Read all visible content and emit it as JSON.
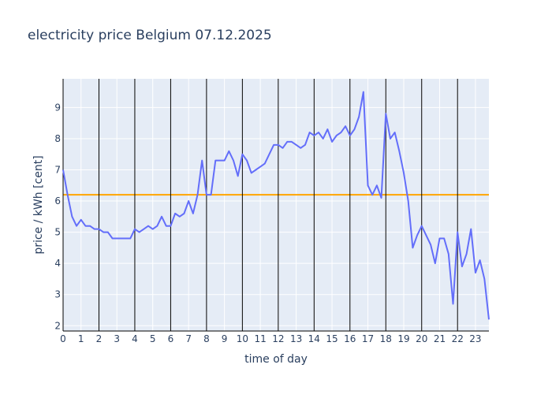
{
  "chart_data": {
    "type": "line",
    "title": "electricity price Belgium 07.12.2025",
    "xlabel": "time of day",
    "ylabel": "price / kWh [cent]",
    "xlim": [
      0,
      23.75
    ],
    "ylim": [
      1.83,
      9.92
    ],
    "x_ticks": [
      0,
      1,
      2,
      3,
      4,
      5,
      6,
      7,
      8,
      9,
      10,
      11,
      12,
      13,
      14,
      15,
      16,
      17,
      18,
      19,
      20,
      21,
      22,
      23
    ],
    "y_ticks": [
      2,
      3,
      4,
      5,
      6,
      7,
      8,
      9
    ],
    "x_tick_labels": [
      "0",
      "1",
      "2",
      "3",
      "4",
      "5",
      "6",
      "7",
      "8",
      "9",
      "10",
      "11",
      "12",
      "13",
      "14",
      "15",
      "16",
      "17",
      "18",
      "19",
      "20",
      "21",
      "22",
      "23"
    ],
    "y_tick_labels": [
      "2",
      "3",
      "4",
      "5",
      "6",
      "7",
      "8",
      "9"
    ],
    "grid": true,
    "vertical_lines": [
      2,
      4,
      6,
      8,
      10,
      12,
      14,
      16,
      18,
      20,
      22
    ],
    "reference_line": {
      "y": 6.2,
      "color": "#ffa500"
    },
    "series": [
      {
        "color": "#636efa",
        "x": [
          0,
          0.25,
          0.5,
          0.75,
          1,
          1.25,
          1.5,
          1.75,
          2,
          2.25,
          2.5,
          2.75,
          3,
          3.25,
          3.5,
          3.75,
          4,
          4.25,
          4.5,
          4.75,
          5,
          5.25,
          5.5,
          5.75,
          6,
          6.25,
          6.5,
          6.75,
          7,
          7.25,
          7.5,
          7.75,
          8,
          8.25,
          8.5,
          8.75,
          9,
          9.25,
          9.5,
          9.75,
          10,
          10.25,
          10.5,
          10.75,
          11,
          11.25,
          11.5,
          11.75,
          12,
          12.25,
          12.5,
          12.75,
          13,
          13.25,
          13.5,
          13.75,
          14,
          14.25,
          14.5,
          14.75,
          15,
          15.25,
          15.5,
          15.75,
          16,
          16.25,
          16.5,
          16.75,
          17,
          17.25,
          17.5,
          17.75,
          18,
          18.25,
          18.5,
          18.75,
          19,
          19.25,
          19.5,
          19.75,
          20,
          20.25,
          20.5,
          20.75,
          21,
          21.25,
          21.5,
          21.75,
          22,
          22.25,
          22.5,
          22.75,
          23,
          23.25,
          23.5,
          23.75
        ],
        "y": [
          7.0,
          6.2,
          5.5,
          5.2,
          5.4,
          5.2,
          5.2,
          5.1,
          5.1,
          5.0,
          5.0,
          4.8,
          4.8,
          4.8,
          4.8,
          4.8,
          5.1,
          5.0,
          5.1,
          5.2,
          5.1,
          5.2,
          5.5,
          5.2,
          5.2,
          5.6,
          5.5,
          5.6,
          6.0,
          5.6,
          6.2,
          7.3,
          6.2,
          6.2,
          7.3,
          7.3,
          7.3,
          7.6,
          7.3,
          6.8,
          7.5,
          7.3,
          6.9,
          7.0,
          7.1,
          7.2,
          7.5,
          7.8,
          7.8,
          7.7,
          7.9,
          7.9,
          7.8,
          7.7,
          7.8,
          8.2,
          8.1,
          8.2,
          8.0,
          8.3,
          7.9,
          8.1,
          8.2,
          8.4,
          8.1,
          8.3,
          8.7,
          9.5,
          6.5,
          6.2,
          6.5,
          6.1,
          8.8,
          8.0,
          8.2,
          7.6,
          6.9,
          6.0,
          4.5,
          4.9,
          5.2,
          4.9,
          4.6,
          4.0,
          4.8,
          4.8,
          4.3,
          2.7,
          5.0,
          3.9,
          4.3,
          5.1,
          3.7,
          4.1,
          3.5,
          2.2
        ]
      }
    ]
  }
}
